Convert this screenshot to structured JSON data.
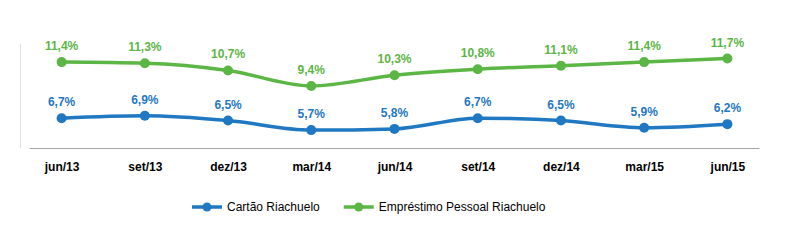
{
  "chart_data": {
    "type": "line",
    "categories": [
      "jun/13",
      "set/13",
      "dez/13",
      "mar/14",
      "jun/14",
      "set/14",
      "dez/14",
      "mar/15",
      "jun/15"
    ],
    "series": [
      {
        "name": "Cartão Riachuelo",
        "color": "#1f78c1",
        "values": [
          6.7,
          6.9,
          6.5,
          5.7,
          5.8,
          6.7,
          6.5,
          5.9,
          6.2
        ],
        "value_labels": [
          "6,7%",
          "6,9%",
          "6,5%",
          "5,7%",
          "5,8%",
          "6,7%",
          "6,5%",
          "5,9%",
          "6,2%"
        ]
      },
      {
        "name": "Empréstimo Pessoal Riachuelo",
        "color": "#5cb646",
        "values": [
          11.4,
          11.3,
          10.7,
          9.4,
          10.3,
          10.8,
          11.1,
          11.4,
          11.7
        ],
        "value_labels": [
          "11,4%",
          "11,3%",
          "10,7%",
          "9,4%",
          "10,3%",
          "10,8%",
          "11,1%",
          "11,4%",
          "11,7%"
        ]
      }
    ],
    "ylim": [
      4.2,
      13
    ],
    "data_labels": true,
    "tick_labels": "x",
    "marker": "circle",
    "line_style": "solid",
    "legend": "bottom"
  }
}
